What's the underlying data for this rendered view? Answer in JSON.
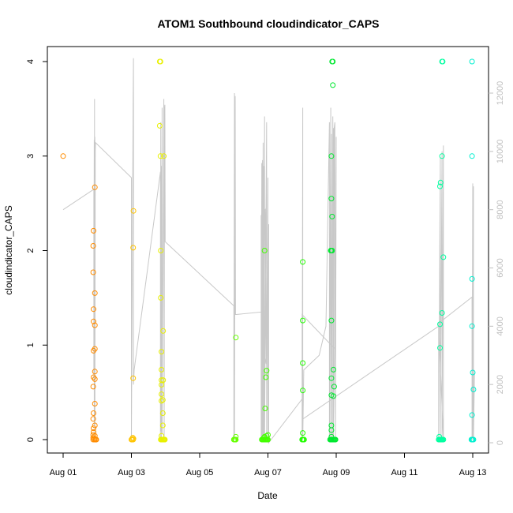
{
  "chart_data": {
    "type": "scatter",
    "title": "ATOM1 Southbound cloudindicator_CAPS",
    "xlabel": "Date",
    "ylabel": "cloudindicator_CAPS",
    "x_unit": "days in August",
    "xlim": [
      1.0,
      13.3
    ],
    "ylim": [
      -0.1,
      4.1
    ],
    "x_ticks": [
      {
        "value": 1,
        "label": "Aug 01"
      },
      {
        "value": 3,
        "label": "Aug 03"
      },
      {
        "value": 5,
        "label": "Aug 05"
      },
      {
        "value": 7,
        "label": "Aug 07"
      },
      {
        "value": 9,
        "label": "Aug 09"
      },
      {
        "value": 11,
        "label": "Aug 11"
      },
      {
        "value": 13,
        "label": "Aug 13"
      }
    ],
    "y_ticks": [
      0,
      1,
      2,
      3,
      4
    ],
    "secondary_y": {
      "ylim": [
        -200,
        12400
      ],
      "ticks": [
        0,
        2000,
        4000,
        6000,
        8000,
        10000,
        12000
      ],
      "color": "#c0c0c0"
    },
    "grid": false,
    "legend": "none",
    "series": [
      {
        "color": "#ff8c00",
        "points": [
          [
            1.0,
            3.0
          ],
          [
            1.88,
            0.0
          ],
          [
            1.88,
            0.02
          ],
          [
            1.88,
            0.05
          ],
          [
            1.89,
            0.08
          ],
          [
            1.89,
            0.12
          ],
          [
            1.88,
            0.22
          ],
          [
            1.89,
            0.28
          ],
          [
            1.88,
            0.56
          ],
          [
            1.89,
            0.66
          ],
          [
            1.89,
            0.94
          ],
          [
            1.89,
            1.25
          ],
          [
            1.89,
            1.38
          ],
          [
            1.88,
            1.77
          ],
          [
            1.88,
            2.05
          ],
          [
            1.89,
            2.21
          ],
          [
            1.92,
            0.0
          ],
          [
            1.92,
            0.01
          ],
          [
            1.93,
            0.04
          ],
          [
            1.93,
            0.15
          ],
          [
            1.93,
            0.38
          ],
          [
            1.93,
            0.64
          ],
          [
            1.93,
            0.72
          ],
          [
            1.93,
            0.96
          ],
          [
            1.93,
            1.21
          ],
          [
            1.93,
            1.55
          ],
          [
            1.93,
            2.67
          ],
          [
            1.96,
            0.0
          ],
          [
            1.97,
            0.0
          ],
          [
            1.95,
            0.0
          ]
        ]
      },
      {
        "color": "#ffc400",
        "points": [
          [
            3.0,
            0.0
          ],
          [
            3.02,
            0.0
          ],
          [
            3.05,
            0.0
          ],
          [
            3.06,
            0.01
          ],
          [
            3.04,
            0.02
          ],
          [
            3.05,
            0.65
          ],
          [
            3.05,
            2.03
          ],
          [
            3.06,
            2.42
          ]
        ]
      },
      {
        "color": "#e8f000",
        "points": [
          [
            3.83,
            4.0
          ],
          [
            3.85,
            4.0
          ],
          [
            3.83,
            3.32
          ],
          [
            3.85,
            3.0
          ],
          [
            3.86,
            2.0
          ],
          [
            3.86,
            1.5
          ],
          [
            3.88,
            0.93
          ],
          [
            3.88,
            0.74
          ],
          [
            3.88,
            0.63
          ],
          [
            3.88,
            0.58
          ],
          [
            3.88,
            0.48
          ],
          [
            3.88,
            0.41
          ],
          [
            3.88,
            0.04
          ],
          [
            3.86,
            0.0
          ],
          [
            3.88,
            0.0
          ],
          [
            3.9,
            0.0
          ],
          [
            3.92,
            0.0
          ],
          [
            3.92,
            0.15
          ],
          [
            3.92,
            0.28
          ],
          [
            3.92,
            0.42
          ],
          [
            3.93,
            0.63
          ],
          [
            3.94,
            0.0
          ],
          [
            3.95,
            0.0
          ],
          [
            3.96,
            0.0
          ],
          [
            3.97,
            0.0
          ],
          [
            3.98,
            0.0
          ],
          [
            3.93,
            1.15
          ],
          [
            3.95,
            3.0
          ]
        ]
      },
      {
        "color": "#66ff00",
        "points": [
          [
            6.0,
            0.0
          ],
          [
            6.02,
            0.0
          ],
          [
            6.04,
            0.0
          ],
          [
            6.05,
            0.0
          ],
          [
            6.06,
            0.0
          ],
          [
            6.06,
            0.03
          ],
          [
            6.06,
            1.08
          ]
        ]
      },
      {
        "color": "#44ff00",
        "points": [
          [
            6.82,
            0.0
          ],
          [
            6.84,
            0.0
          ],
          [
            6.86,
            0.0
          ],
          [
            6.88,
            0.0
          ],
          [
            6.9,
            0.0
          ],
          [
            6.92,
            0.0
          ],
          [
            6.94,
            0.0
          ],
          [
            6.96,
            0.0
          ],
          [
            6.98,
            0.0
          ],
          [
            7.0,
            0.0
          ],
          [
            6.88,
            0.02
          ],
          [
            6.9,
            0.03
          ],
          [
            6.96,
            0.04
          ],
          [
            7.0,
            0.05
          ],
          [
            6.92,
            0.33
          ],
          [
            6.94,
            0.66
          ],
          [
            6.96,
            0.73
          ],
          [
            6.9,
            2.0
          ]
        ]
      },
      {
        "color": "#22ff00",
        "points": [
          [
            8.0,
            0.0
          ],
          [
            8.02,
            0.0
          ],
          [
            8.04,
            0.0
          ],
          [
            8.06,
            0.0
          ],
          [
            8.02,
            0.07
          ],
          [
            8.02,
            0.52
          ],
          [
            8.02,
            0.81
          ],
          [
            8.02,
            1.26
          ],
          [
            8.02,
            1.88
          ]
        ]
      },
      {
        "color": "#00e830",
        "points": [
          [
            8.82,
            0.0
          ],
          [
            8.84,
            0.0
          ],
          [
            8.86,
            0.0
          ],
          [
            8.88,
            0.0
          ],
          [
            8.9,
            0.0
          ],
          [
            8.92,
            0.0
          ],
          [
            8.94,
            0.0
          ],
          [
            8.96,
            0.0
          ],
          [
            8.98,
            0.0
          ],
          [
            8.86,
            0.03
          ],
          [
            8.86,
            0.1
          ],
          [
            8.86,
            0.15
          ],
          [
            8.86,
            0.47
          ],
          [
            8.86,
            0.65
          ],
          [
            8.86,
            1.26
          ],
          [
            8.84,
            2.0
          ],
          [
            8.86,
            2.0
          ],
          [
            8.88,
            2.0
          ],
          [
            8.88,
            2.36
          ],
          [
            8.86,
            2.55
          ],
          [
            8.86,
            3.0
          ],
          [
            8.9,
            3.75
          ],
          [
            8.88,
            4.0
          ],
          [
            8.9,
            4.0
          ],
          [
            8.92,
            0.46
          ],
          [
            8.94,
            0.56
          ],
          [
            8.92,
            0.74
          ]
        ]
      },
      {
        "color": "#00ffa0",
        "points": [
          [
            12.0,
            0.0
          ],
          [
            12.02,
            0.0
          ],
          [
            12.04,
            0.0
          ],
          [
            12.06,
            0.0
          ],
          [
            12.08,
            0.0
          ],
          [
            12.1,
            0.0
          ],
          [
            12.12,
            0.0
          ],
          [
            12.14,
            0.0
          ],
          [
            12.02,
            0.03
          ],
          [
            12.04,
            0.97
          ],
          [
            12.04,
            1.22
          ],
          [
            12.1,
            1.34
          ],
          [
            12.14,
            1.93
          ],
          [
            12.04,
            2.68
          ],
          [
            12.06,
            2.72
          ],
          [
            12.1,
            3.0
          ],
          [
            12.1,
            4.0
          ],
          [
            12.12,
            4.0
          ]
        ]
      },
      {
        "color": "#00f0d0",
        "points": [
          [
            12.96,
            0.0
          ],
          [
            12.98,
            0.0
          ],
          [
            13.0,
            0.0
          ],
          [
            13.02,
            0.0
          ],
          [
            12.98,
            0.26
          ],
          [
            13.02,
            0.53
          ],
          [
            13.0,
            0.71
          ],
          [
            12.98,
            1.2
          ],
          [
            12.98,
            1.7
          ],
          [
            12.98,
            3.0
          ],
          [
            12.98,
            4.0
          ]
        ]
      }
    ],
    "secondary_line": {
      "color": "#c8c8c8",
      "points": [
        [
          1.0,
          8000
        ],
        [
          1.9,
          8700
        ],
        [
          1.9,
          2200
        ],
        [
          1.91,
          10400
        ],
        [
          1.91,
          600
        ],
        [
          1.92,
          11800
        ],
        [
          1.92,
          1200
        ],
        [
          1.93,
          10500
        ],
        [
          1.93,
          200
        ],
        [
          1.94,
          10000
        ],
        [
          1.95,
          10300
        ],
        [
          3.0,
          9100
        ],
        [
          3.0,
          200
        ],
        [
          3.05,
          11800
        ],
        [
          3.06,
          13200
        ],
        [
          3.06,
          2000
        ],
        [
          3.08,
          2500
        ],
        [
          3.85,
          9300
        ],
        [
          3.85,
          100
        ],
        [
          3.86,
          11000
        ],
        [
          3.86,
          400
        ],
        [
          3.88,
          9500
        ],
        [
          3.88,
          200
        ],
        [
          3.9,
          11500
        ],
        [
          3.9,
          300
        ],
        [
          3.95,
          11800
        ],
        [
          3.96,
          200
        ],
        [
          3.97,
          11500
        ],
        [
          3.98,
          11600
        ],
        [
          3.99,
          6900
        ],
        [
          6.0,
          4700
        ],
        [
          6.0,
          100
        ],
        [
          6.02,
          12000
        ],
        [
          6.02,
          200
        ],
        [
          6.04,
          11900
        ],
        [
          6.05,
          4400
        ],
        [
          6.9,
          4500
        ],
        [
          6.9,
          3000
        ],
        [
          6.95,
          2700
        ],
        [
          6.92,
          8000
        ],
        [
          6.8,
          7800
        ],
        [
          6.8,
          100
        ],
        [
          6.82,
          9600
        ],
        [
          6.82,
          100
        ],
        [
          6.84,
          9700
        ],
        [
          6.84,
          200
        ],
        [
          6.86,
          10300
        ],
        [
          6.86,
          100
        ],
        [
          6.88,
          9500
        ],
        [
          6.88,
          200
        ],
        [
          6.9,
          11200
        ],
        [
          6.9,
          100
        ],
        [
          6.96,
          11000
        ],
        [
          6.96,
          100
        ],
        [
          7.0,
          9100
        ],
        [
          7.0,
          200
        ],
        [
          7.02,
          7500
        ],
        [
          7.02,
          0
        ],
        [
          8.0,
          1500
        ],
        [
          8.0,
          100
        ],
        [
          8.02,
          11500
        ],
        [
          8.02,
          100
        ],
        [
          8.05,
          2500
        ],
        [
          8.5,
          3000
        ],
        [
          8.7,
          4000
        ],
        [
          8.8,
          11000
        ],
        [
          8.8,
          100
        ],
        [
          8.84,
          11500
        ],
        [
          8.84,
          100
        ],
        [
          8.86,
          10600
        ],
        [
          8.86,
          100
        ],
        [
          8.9,
          11200
        ],
        [
          8.9,
          100
        ],
        [
          8.92,
          10800
        ],
        [
          8.92,
          200
        ],
        [
          8.95,
          3200
        ],
        [
          8.94,
          10800
        ],
        [
          8.96,
          11000
        ],
        [
          8.98,
          200
        ],
        [
          9.0,
          10500
        ],
        [
          8.98,
          3200
        ],
        [
          8.0,
          4400
        ],
        [
          8.0,
          800
        ],
        [
          12.0,
          4000
        ],
        [
          12.0,
          100
        ],
        [
          12.05,
          9800
        ],
        [
          12.05,
          200
        ],
        [
          12.1,
          10000
        ],
        [
          12.1,
          100
        ],
        [
          12.14,
          10200
        ],
        [
          12.14,
          100
        ],
        [
          12.0,
          4100
        ],
        [
          12.98,
          5000
        ],
        [
          12.98,
          100
        ],
        [
          13.0,
          8900
        ],
        [
          13.0,
          200
        ],
        [
          13.02,
          8800
        ],
        [
          13.02,
          100
        ],
        [
          13.05,
          2400
        ]
      ]
    }
  }
}
